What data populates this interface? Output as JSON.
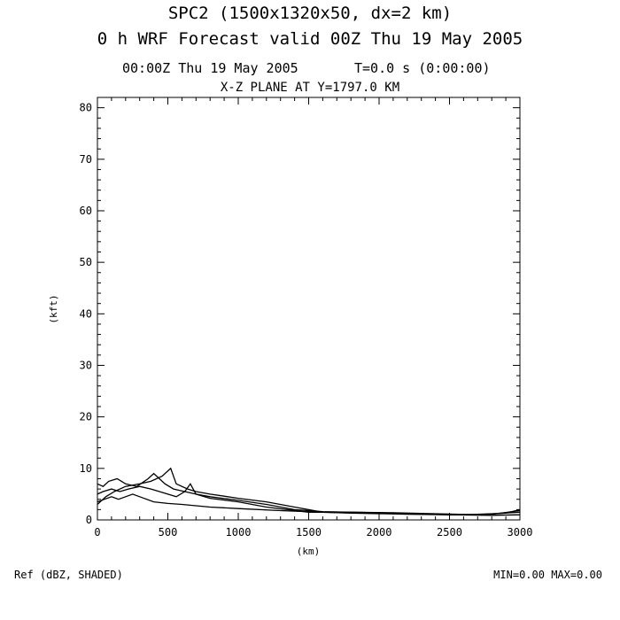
{
  "header": {
    "title_line1": "SPC2 (1500x1320x50, dx=2 km)",
    "title_line2": "0 h WRF Forecast valid 00Z Thu 19 May 2005",
    "time_label": "00:00Z Thu 19 May 2005",
    "sim_time": "T=0.0 s (0:00:00)",
    "plane_label": "X-Z PLANE AT Y=1797.0 KM"
  },
  "footer": {
    "field_label": "Ref (dBZ, SHADED)",
    "minmax_label": "MIN=0.00 MAX=0.00"
  },
  "chart_data": {
    "type": "line",
    "xlabel": "(km)",
    "ylabel": "(kft)",
    "xlim": [
      0,
      3000
    ],
    "ylim": [
      0,
      82
    ],
    "x_ticks": [
      0,
      500,
      1000,
      1500,
      2000,
      2500,
      3000
    ],
    "y_ticks": [
      0,
      10,
      20,
      30,
      40,
      50,
      60,
      70,
      80
    ],
    "x_tick_labels": [
      "0",
      "500",
      "1000",
      "1500",
      "2000",
      "2500",
      "3000"
    ],
    "y_tick_labels": [
      "0",
      "10",
      "20",
      "30",
      "40",
      "50",
      "60",
      "70",
      "80"
    ],
    "grid": false,
    "line_color": "#000000",
    "series": [
      {
        "x": [
          0,
          60,
          120,
          200,
          300,
          380,
          460,
          520,
          560,
          640,
          700,
          800,
          900,
          1000,
          1200,
          1400,
          1600,
          1800,
          2000,
          2200,
          2400,
          2600,
          2800,
          3000
        ],
        "y": [
          3.0,
          4.5,
          5.5,
          6.5,
          7.0,
          7.5,
          8.5,
          10.0,
          7.0,
          6.0,
          5.5,
          5.0,
          4.6,
          4.2,
          3.5,
          2.5,
          1.5,
          1.3,
          1.2,
          1.2,
          1.1,
          1.0,
          1.2,
          1.5
        ]
      },
      {
        "x": [
          0,
          40,
          80,
          140,
          200,
          280,
          360,
          400,
          440,
          480,
          540,
          620,
          700,
          800,
          1000,
          1200,
          1400,
          1600,
          1800,
          2000,
          2200,
          2500,
          2800,
          3000
        ],
        "y": [
          7.0,
          6.5,
          7.5,
          8.0,
          7.0,
          6.5,
          8.0,
          9.0,
          8.0,
          7.0,
          6.0,
          5.5,
          5.0,
          4.5,
          3.8,
          3.0,
          2.0,
          1.6,
          1.5,
          1.4,
          1.2,
          1.0,
          1.1,
          1.8
        ]
      },
      {
        "x": [
          0,
          40,
          100,
          160,
          220,
          300,
          380,
          440,
          500,
          560,
          620,
          660,
          700,
          800,
          1000,
          1200,
          1500,
          1800,
          2100,
          2400,
          2700,
          2900,
          3000
        ],
        "y": [
          5.0,
          5.5,
          6.0,
          5.5,
          6.0,
          6.5,
          6.0,
          5.5,
          5.0,
          4.5,
          5.5,
          7.0,
          5.0,
          4.2,
          3.5,
          2.5,
          1.5,
          1.5,
          1.4,
          1.2,
          1.0,
          1.3,
          2.0
        ]
      },
      {
        "x": [
          0,
          50,
          100,
          150,
          200,
          250,
          300,
          400,
          500,
          600,
          800,
          1000,
          1300,
          1600,
          1900,
          2200,
          2500,
          2800,
          3000
        ],
        "y": [
          3.5,
          4.0,
          4.5,
          4.0,
          4.5,
          5.0,
          4.5,
          3.5,
          3.2,
          3.0,
          2.5,
          2.2,
          1.8,
          1.5,
          1.3,
          1.1,
          1.0,
          0.9,
          1.0
        ]
      }
    ]
  }
}
